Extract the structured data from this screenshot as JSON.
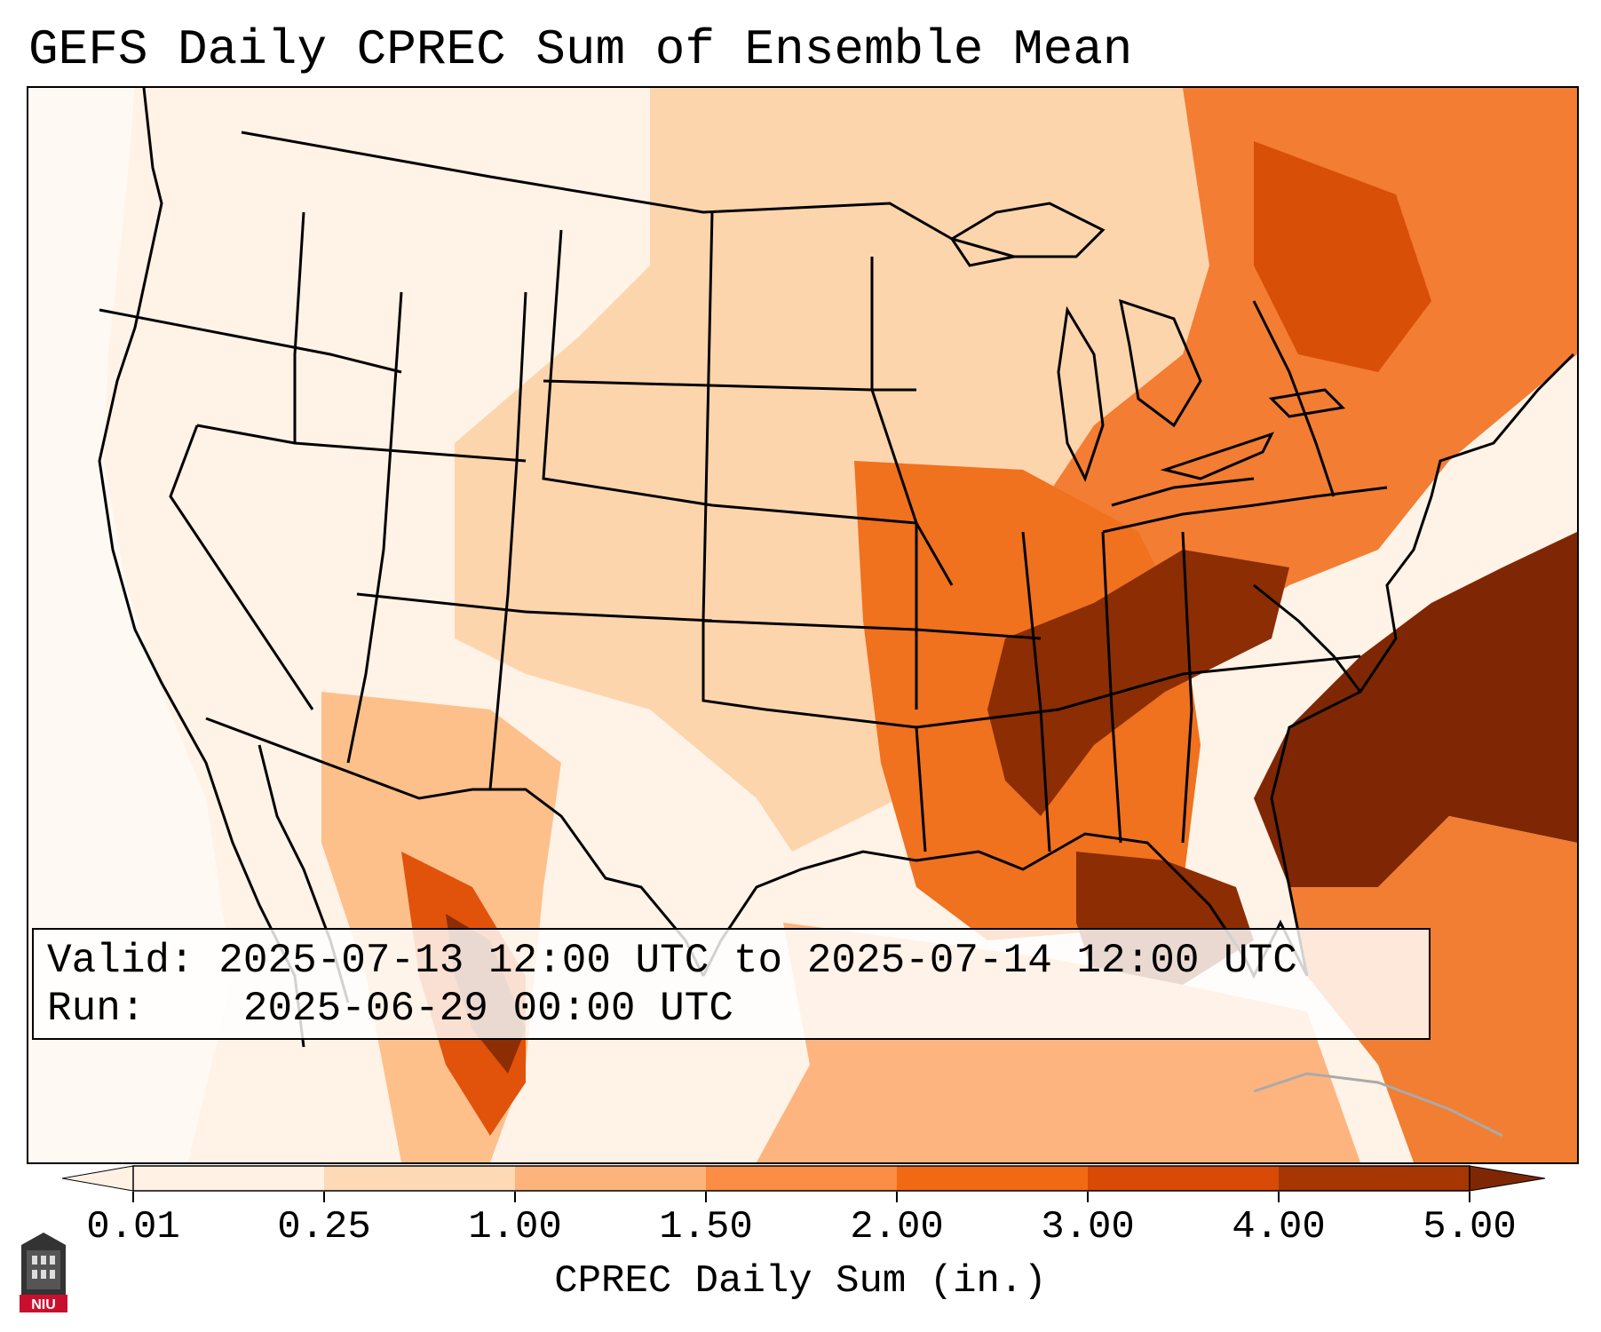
{
  "title": "GEFS Daily CPREC Sum of Ensemble Mean",
  "valid_box": {
    "valid_label": "Valid:",
    "valid_value": "2025-07-13 12:00 UTC to 2025-07-14 12:00 UTC",
    "run_label": "Run:",
    "run_value": "2025-06-29 00:00 UTC"
  },
  "colorbar": {
    "label": "CPREC Daily Sum (in.)",
    "ticks": [
      "0.01",
      "0.25",
      "1.00",
      "1.50",
      "2.00",
      "3.00",
      "4.00",
      "5.00"
    ],
    "colors": [
      "#fff1e4",
      "#fdd9b6",
      "#fdb37c",
      "#fb8d44",
      "#f16913",
      "#d84a05",
      "#a63603",
      "#7f2704"
    ],
    "extend": "both"
  },
  "logo": {
    "text": "NIU"
  },
  "map": {
    "region": "Contiguous United States",
    "projection": "Lambert Conformal"
  }
}
